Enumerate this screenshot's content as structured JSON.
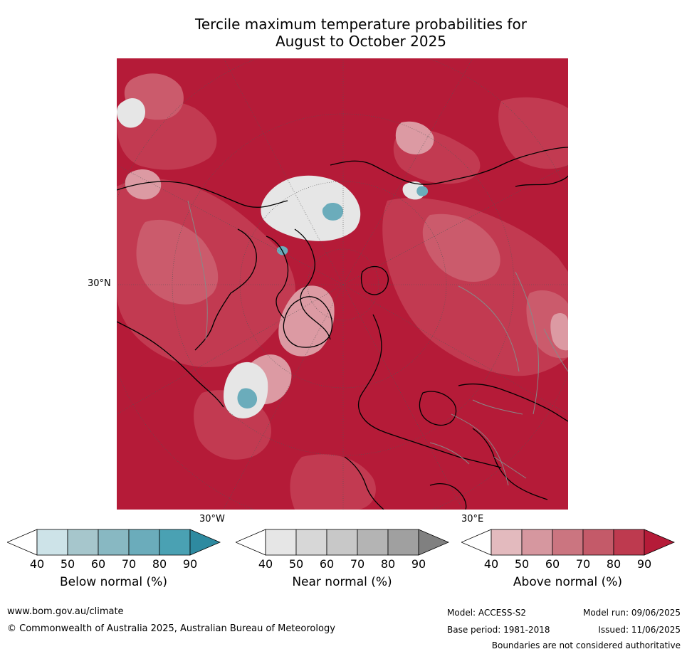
{
  "title_line1": "Tercile maximum temperature probabilities for",
  "title_line2": "August to October 2025",
  "map": {
    "lat_label": "30°N",
    "lon_label_left": "30°W",
    "lon_label_right": "30°E",
    "colors": {
      "above_90": "#b51b38",
      "above_80": "#c23a51",
      "above_70": "#cb5b6c",
      "above_60": "#d57c88",
      "above_50": "#dc9aa3",
      "above_40": "#e3babe",
      "near_40": "#e6e6e6",
      "near_50": "#d7d7d7",
      "near_60": "#c8c8c8",
      "below_50": "#a6c6cc",
      "below_70": "#6bacbb",
      "coast": "#000000",
      "borders": "#888888"
    }
  },
  "colorbars": [
    {
      "title": "Below normal (%)",
      "ticks": [
        "40",
        "50",
        "60",
        "70",
        "80",
        "90"
      ],
      "colors": [
        "#ffffff",
        "#cde3e8",
        "#a6c6cc",
        "#88b8c2",
        "#6bacbb",
        "#4aa1b3",
        "#2e8aa0"
      ]
    },
    {
      "title": "Near normal (%)",
      "ticks": [
        "40",
        "50",
        "60",
        "70",
        "80",
        "90"
      ],
      "colors": [
        "#ffffff",
        "#e6e6e6",
        "#d7d7d7",
        "#c8c8c8",
        "#b4b4b4",
        "#a0a0a0",
        "#808080"
      ]
    },
    {
      "title": "Above normal (%)",
      "ticks": [
        "40",
        "50",
        "60",
        "70",
        "80",
        "90"
      ],
      "colors": [
        "#ffffff",
        "#e3babe",
        "#d6979f",
        "#cb7580",
        "#c45a69",
        "#be3a4f",
        "#b51b38"
      ]
    }
  ],
  "footer": {
    "website": "www.bom.gov.au/climate",
    "copyright": "© Commonwealth of Australia 2025, Australian Bureau of Meteorology",
    "model": "Model: ACCESS-S2",
    "model_run": "Model run: 09/06/2025",
    "base_period": "Base period: 1981-2018",
    "issued": "Issued: 11/06/2025",
    "disclaimer": "Boundaries are not considered authoritative"
  }
}
